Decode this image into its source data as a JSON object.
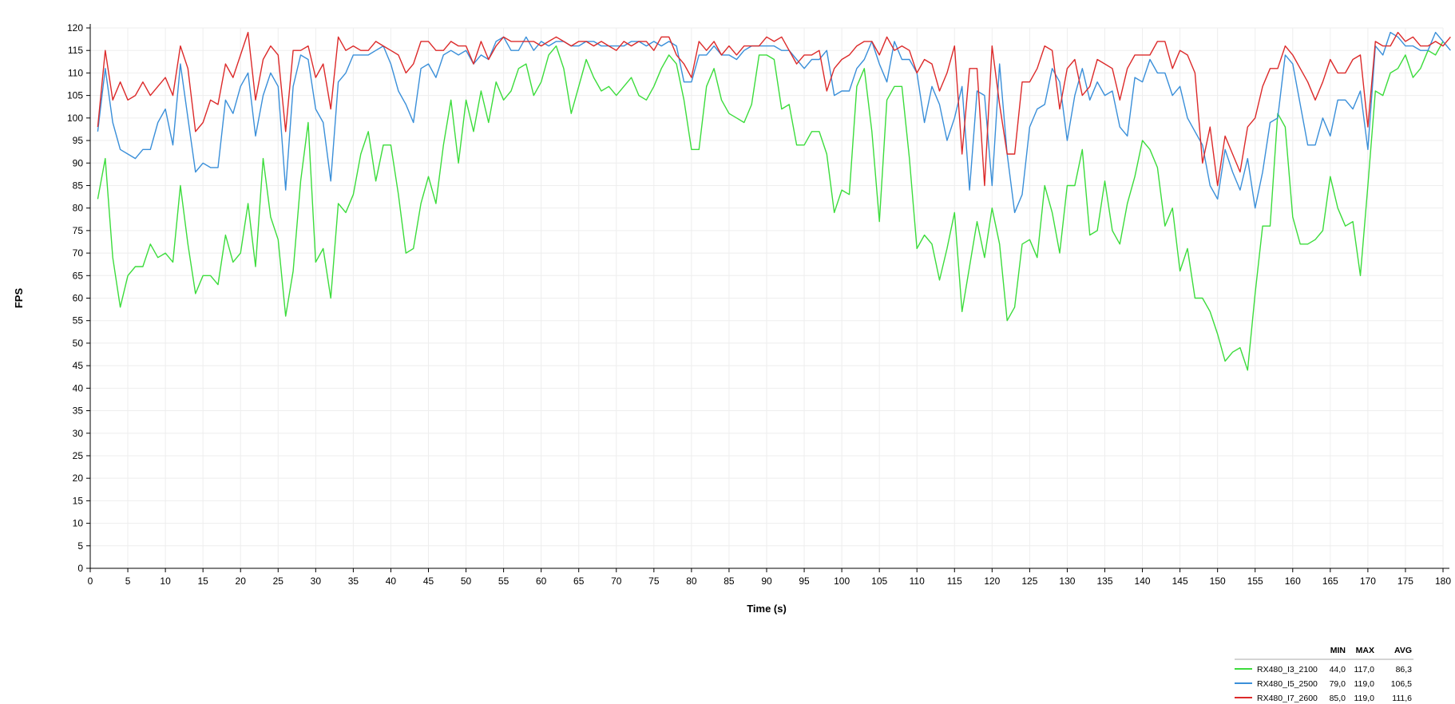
{
  "chart_data": {
    "type": "line",
    "title": "",
    "xlabel": "Time (s)",
    "ylabel": "FPS",
    "xlim": [
      0,
      180
    ],
    "ylim": [
      0,
      120
    ],
    "x_ticks": [
      0,
      5,
      10,
      15,
      20,
      25,
      30,
      35,
      40,
      45,
      50,
      55,
      60,
      65,
      70,
      75,
      80,
      85,
      90,
      95,
      100,
      105,
      110,
      115,
      120,
      125,
      130,
      135,
      140,
      145,
      150,
      155,
      160,
      165,
      170,
      175,
      180
    ],
    "y_ticks": [
      0,
      5,
      10,
      15,
      20,
      25,
      30,
      35,
      40,
      45,
      50,
      55,
      60,
      65,
      70,
      75,
      80,
      85,
      90,
      95,
      100,
      105,
      110,
      115,
      120
    ],
    "grid": true,
    "legend_position": "bottom-right",
    "legend_columns": [
      "MIN",
      "MAX",
      "AVG"
    ],
    "series": [
      {
        "name": "RX480_I3_2100",
        "color": "#3cdc3c",
        "min": "44,0",
        "max": "117,0",
        "avg": "86,3",
        "x_start": 1,
        "values": [
          82,
          91,
          69,
          58,
          65,
          67,
          67,
          72,
          69,
          70,
          68,
          85,
          72,
          61,
          65,
          65,
          63,
          74,
          68,
          70,
          81,
          67,
          91,
          78,
          73,
          56,
          66,
          86,
          99,
          68,
          71,
          60,
          81,
          79,
          83,
          92,
          97,
          86,
          94,
          94,
          83,
          70,
          71,
          81,
          87,
          81,
          94,
          104,
          90,
          104,
          97,
          106,
          99,
          108,
          104,
          106,
          111,
          112,
          105,
          108,
          114,
          116,
          111,
          101,
          107,
          113,
          109,
          106,
          107,
          105,
          107,
          109,
          105,
          104,
          107,
          111,
          114,
          112,
          104,
          93,
          93,
          107,
          111,
          104,
          101,
          100,
          99,
          103,
          114,
          114,
          113,
          102,
          103,
          94,
          94,
          97,
          97,
          92,
          79,
          84,
          83,
          107,
          111,
          97,
          77,
          104,
          107,
          107,
          91,
          71,
          74,
          72,
          64,
          71,
          79,
          57,
          67,
          77,
          69,
          80,
          72,
          55,
          58,
          72,
          73,
          69,
          85,
          79,
          70,
          85,
          85,
          93,
          74,
          75,
          86,
          75,
          72,
          81,
          87,
          95,
          93,
          89,
          76,
          80,
          66,
          71,
          60,
          60,
          57,
          52,
          46,
          48,
          49,
          44,
          61,
          76,
          76,
          101,
          98,
          78,
          72,
          72,
          73,
          75,
          87,
          80,
          76,
          77,
          65,
          85,
          106,
          105,
          110,
          111,
          114,
          109,
          111,
          115,
          114,
          117
        ]
      },
      {
        "name": "RX480_I5_2500",
        "color": "#3a8fd9",
        "min": "79,0",
        "max": "119,0",
        "avg": "106,5",
        "x_start": 1,
        "values": [
          97,
          111,
          99,
          93,
          92,
          91,
          93,
          93,
          99,
          102,
          94,
          112,
          100,
          88,
          90,
          89,
          89,
          104,
          101,
          107,
          110,
          96,
          105,
          110,
          107,
          84,
          107,
          114,
          113,
          102,
          99,
          86,
          108,
          110,
          114,
          114,
          114,
          115,
          116,
          112,
          106,
          103,
          99,
          111,
          112,
          109,
          114,
          115,
          114,
          115,
          112,
          114,
          113,
          117,
          118,
          115,
          115,
          118,
          115,
          117,
          116,
          117,
          117,
          116,
          116,
          117,
          117,
          116,
          116,
          116,
          116,
          117,
          117,
          116,
          117,
          116,
          117,
          116,
          108,
          108,
          114,
          114,
          116,
          114,
          114,
          113,
          115,
          116,
          116,
          116,
          116,
          115,
          115,
          113,
          111,
          113,
          113,
          115,
          105,
          106,
          106,
          111,
          113,
          117,
          112,
          108,
          117,
          113,
          113,
          110,
          99,
          107,
          103,
          95,
          100,
          107,
          84,
          106,
          105,
          85,
          112,
          92,
          79,
          83,
          98,
          102,
          103,
          111,
          108,
          95,
          105,
          111,
          104,
          108,
          105,
          106,
          98,
          96,
          109,
          108,
          113,
          110,
          110,
          105,
          107,
          100,
          97,
          94,
          85,
          82,
          93,
          88,
          84,
          91,
          80,
          88,
          99,
          100,
          114,
          112,
          103,
          94,
          94,
          100,
          96,
          104,
          104,
          102,
          106,
          93,
          116,
          114,
          119,
          118,
          116,
          116,
          115,
          115,
          119,
          117,
          115
        ]
      },
      {
        "name": "RX480_I7_2600",
        "color": "#dc2a2a",
        "min": "85,0",
        "max": "119,0",
        "avg": "111,6",
        "x_start": 1,
        "values": [
          98,
          115,
          104,
          108,
          104,
          105,
          108,
          105,
          107,
          109,
          105,
          116,
          111,
          97,
          99,
          104,
          103,
          112,
          109,
          114,
          119,
          104,
          113,
          116,
          114,
          97,
          115,
          115,
          116,
          109,
          112,
          102,
          118,
          115,
          116,
          115,
          115,
          117,
          116,
          115,
          114,
          110,
          112,
          117,
          117,
          115,
          115,
          117,
          116,
          116,
          112,
          117,
          113,
          116,
          118,
          117,
          117,
          117,
          117,
          116,
          117,
          118,
          117,
          116,
          117,
          117,
          116,
          117,
          116,
          115,
          117,
          116,
          117,
          117,
          115,
          118,
          118,
          114,
          112,
          109,
          117,
          115,
          117,
          114,
          116,
          114,
          116,
          116,
          116,
          118,
          117,
          118,
          115,
          112,
          114,
          114,
          115,
          106,
          111,
          113,
          114,
          116,
          117,
          117,
          114,
          118,
          115,
          116,
          115,
          110,
          113,
          112,
          106,
          110,
          116,
          92,
          111,
          111,
          85,
          116,
          103,
          92,
          92,
          108,
          108,
          111,
          116,
          115,
          102,
          111,
          113,
          105,
          107,
          113,
          112,
          111,
          104,
          111,
          114,
          114,
          114,
          117,
          117,
          111,
          115,
          114,
          110,
          90,
          98,
          85,
          96,
          92,
          88,
          98,
          100,
          107,
          111,
          111,
          116,
          114,
          111,
          108,
          104,
          108,
          113,
          110,
          110,
          113,
          114,
          98,
          117,
          116,
          116,
          119,
          117,
          118,
          116,
          116,
          117,
          116,
          118
        ]
      }
    ]
  }
}
